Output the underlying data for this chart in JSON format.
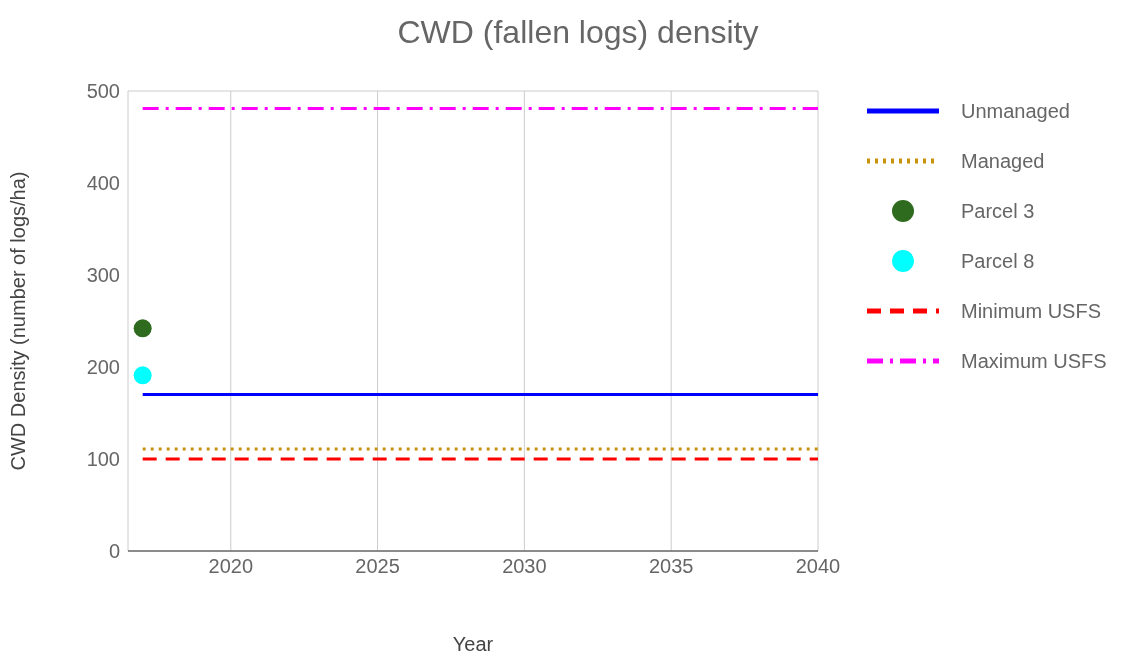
{
  "chart_data": {
    "type": "line",
    "title": "CWD (fallen logs) density",
    "xlabel": "Year",
    "ylabel": "CWD Density (number of logs/ha)",
    "xlim": [
      2016.5,
      2040
    ],
    "xticks": [
      2020,
      2025,
      2030,
      2035,
      2040
    ],
    "ylim": [
      0,
      500
    ],
    "yticks": [
      0,
      100,
      200,
      300,
      400,
      500
    ],
    "grid": true,
    "legend": "right",
    "x": [
      2017,
      2040
    ],
    "series": [
      {
        "name": "Unmanaged",
        "color": "#0000ff",
        "values": [
          170,
          170
        ],
        "line_style": "solid",
        "marker": "none"
      },
      {
        "name": "Managed",
        "color": "#c8930a",
        "values": [
          111,
          111
        ],
        "line_style": "dotted",
        "marker": "none"
      },
      {
        "name": "Parcel 3",
        "type": "scatter",
        "color": "#2e6b1e",
        "x": [
          2017
        ],
        "values": [
          242
        ],
        "marker": "circle"
      },
      {
        "name": "Parcel 8",
        "type": "scatter",
        "color": "#00ffff",
        "x": [
          2017
        ],
        "values": [
          191
        ],
        "marker": "circle"
      },
      {
        "name": "Minimum USFS",
        "color": "#ff0000",
        "values": [
          100,
          100
        ],
        "line_style": "dashed",
        "marker": "none"
      },
      {
        "name": "Maximum USFS",
        "color": "#ff00ff",
        "values": [
          481,
          481
        ],
        "line_style": "dashdot",
        "marker": "none"
      }
    ]
  }
}
